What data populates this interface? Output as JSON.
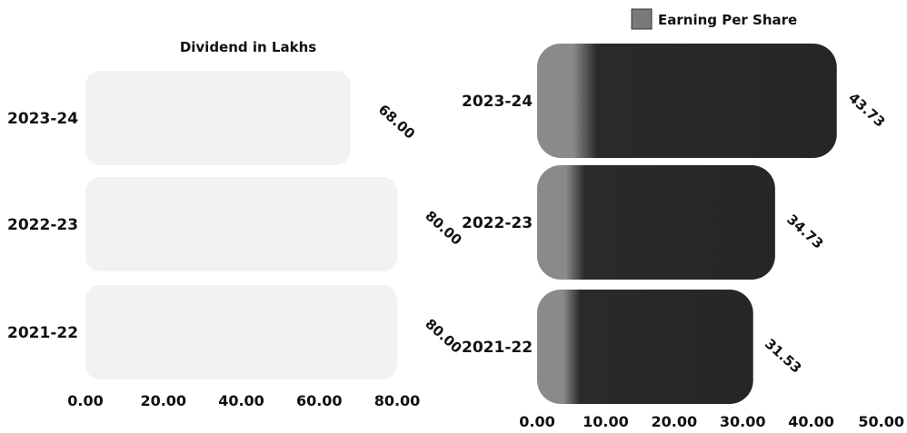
{
  "chart_data": [
    {
      "type": "bar",
      "orientation": "horizontal",
      "title": "Dividend in Lakhs",
      "categories": [
        "2023-24",
        "2022-23",
        "2021-22"
      ],
      "values": [
        68.0,
        80.0,
        80.0
      ],
      "data_labels": [
        "68.00",
        "80.00",
        "80.00"
      ],
      "xlim": [
        0,
        80
      ],
      "xticks": [
        "0.00",
        "20.00",
        "40.00",
        "60.00",
        "80.00"
      ],
      "grid": false,
      "bar_color": "#f2f2f2"
    },
    {
      "type": "bar",
      "orientation": "horizontal",
      "legend": [
        "Earning Per Share"
      ],
      "legend_position": "top",
      "categories": [
        "2023-24",
        "2022-23",
        "2021-22"
      ],
      "values": [
        43.73,
        34.73,
        31.53
      ],
      "data_labels": [
        "43.73",
        "34.73",
        "31.53"
      ],
      "xlim": [
        0,
        50
      ],
      "xticks": [
        "0.00",
        "10.00",
        "20.00",
        "30.00",
        "40.00",
        "50.00"
      ],
      "grid": false,
      "bar_color": "#2a2a2a",
      "bar_highlight_color": "#8a8a8a"
    }
  ]
}
